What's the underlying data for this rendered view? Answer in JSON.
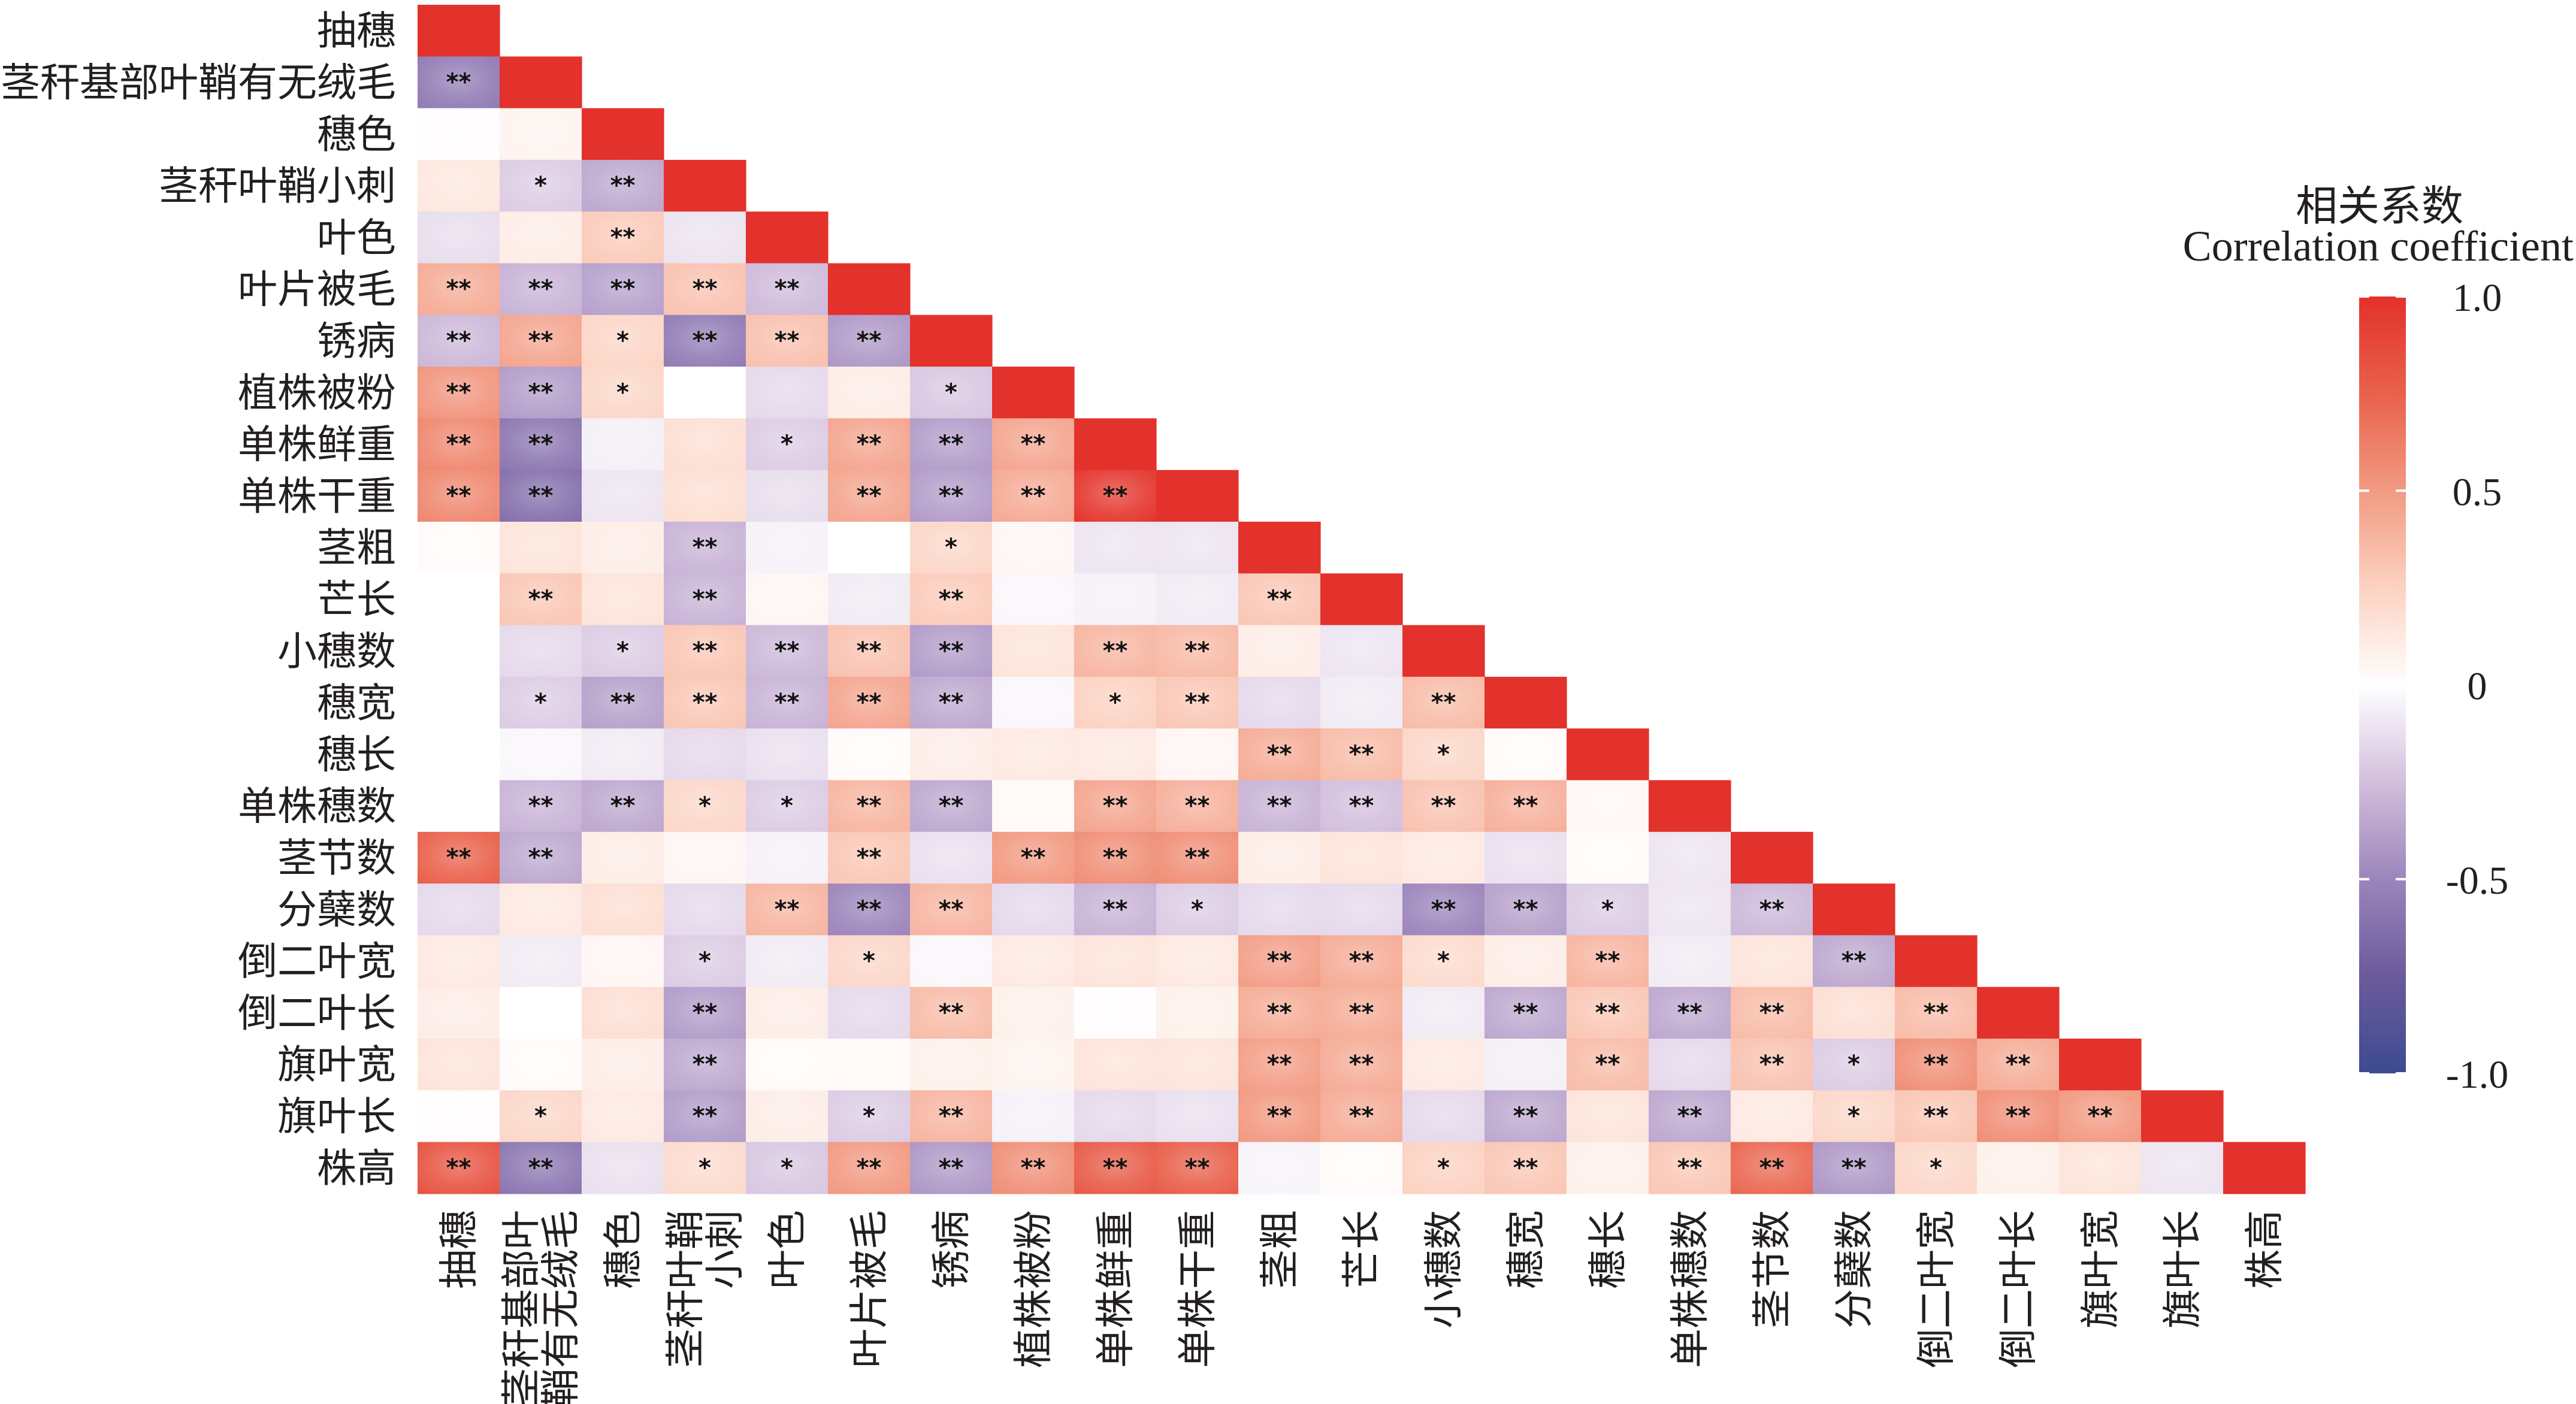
{
  "chart_data": {
    "type": "heatmap",
    "subtype": "correlation-matrix-lower-triangle",
    "title": "",
    "xlabel": "",
    "ylabel": "",
    "value_range": [
      -1.0,
      1.0
    ],
    "variables": [
      "抽穗",
      "茎秆基部叶鞘有无绒毛",
      "穗色",
      "茎秆叶鞘小刺",
      "叶色",
      "叶片被毛",
      "锈病",
      "植株被粉",
      "单株鲜重",
      "单株干重",
      "茎粗",
      "芒长",
      "小穗数",
      "穗宽",
      "穗长",
      "单株穗数",
      "茎节数",
      "分蘖数",
      "倒二叶宽",
      "倒二叶长",
      "旗叶宽",
      "旗叶长",
      "株高"
    ],
    "y_tick_labels": [
      "抽穗",
      "茎秆基部叶鞘有无绒毛",
      "穗色",
      "茎秆叶鞘小刺",
      "叶色",
      "叶片被毛",
      "锈病",
      "植株被粉",
      "单株鲜重",
      "单株干重",
      "茎粗",
      "芒长",
      "小穗数",
      "穗宽",
      "穗长",
      "单株穗数",
      "茎节数",
      "分蘖数",
      "倒二叶宽",
      "倒二叶长",
      "旗叶宽",
      "旗叶长",
      "株高"
    ],
    "x_tick_labels": [
      [
        "抽穗"
      ],
      [
        "茎秆基部叶",
        "鞘有无绒毛"
      ],
      [
        "穗色"
      ],
      [
        "茎秆叶鞘",
        "小刺"
      ],
      [
        "叶色"
      ],
      [
        "叶片被毛"
      ],
      [
        "锈病"
      ],
      [
        "植株被粉"
      ],
      [
        "单株鲜重"
      ],
      [
        "单株干重"
      ],
      [
        "茎粗"
      ],
      [
        "芒长"
      ],
      [
        "小穗数"
      ],
      [
        "穗宽"
      ],
      [
        "穗长"
      ],
      [
        "单株穗数"
      ],
      [
        "茎节数"
      ],
      [
        "分蘖数"
      ],
      [
        "倒二叶宽"
      ],
      [
        "倒二叶长"
      ],
      [
        "旗叶宽"
      ],
      [
        "旗叶长"
      ],
      [
        "株高"
      ]
    ],
    "values": [
      [
        1
      ],
      [
        -0.55,
        1
      ],
      [
        0.01,
        0.06,
        1
      ],
      [
        0.13,
        -0.2,
        -0.35,
        1
      ],
      [
        -0.13,
        0.1,
        0.28,
        -0.11,
        1
      ],
      [
        0.42,
        -0.3,
        -0.38,
        0.32,
        -0.27,
        1
      ],
      [
        -0.28,
        0.45,
        0.23,
        -0.55,
        0.33,
        -0.42,
        1
      ],
      [
        0.52,
        -0.4,
        0.22,
        0.0,
        -0.15,
        0.1,
        -0.22,
        1
      ],
      [
        0.58,
        -0.58,
        -0.06,
        0.18,
        -0.2,
        0.45,
        -0.4,
        0.45,
        1
      ],
      [
        0.58,
        -0.62,
        -0.1,
        0.18,
        -0.13,
        0.45,
        -0.4,
        0.43,
        0.97,
        1
      ],
      [
        0.02,
        0.15,
        0.1,
        -0.3,
        -0.05,
        0.0,
        0.22,
        0.05,
        -0.1,
        -0.1,
        1
      ],
      [
        0.0,
        0.3,
        0.15,
        -0.3,
        0.05,
        -0.08,
        0.28,
        -0.03,
        -0.05,
        -0.08,
        0.3,
        1
      ],
      [
        0.0,
        -0.15,
        -0.2,
        0.3,
        -0.28,
        0.32,
        -0.4,
        0.15,
        0.38,
        0.36,
        0.1,
        -0.1,
        1
      ],
      [
        0.0,
        -0.2,
        -0.38,
        0.3,
        -0.3,
        0.45,
        -0.35,
        -0.03,
        0.25,
        0.3,
        -0.15,
        -0.08,
        0.35,
        1
      ],
      [
        0.0,
        -0.03,
        -0.08,
        -0.15,
        -0.12,
        0.02,
        0.1,
        0.12,
        0.12,
        0.05,
        0.42,
        0.35,
        0.22,
        0.02,
        1
      ],
      [
        0.0,
        -0.3,
        -0.35,
        0.22,
        -0.2,
        0.38,
        -0.35,
        0.03,
        0.45,
        0.4,
        -0.3,
        -0.25,
        0.32,
        0.4,
        0.04,
        1
      ],
      [
        0.75,
        -0.35,
        0.1,
        0.05,
        -0.05,
        0.3,
        -0.12,
        0.5,
        0.55,
        0.55,
        0.1,
        0.15,
        0.12,
        -0.12,
        0.02,
        -0.1,
        1
      ],
      [
        -0.15,
        0.12,
        0.18,
        -0.15,
        0.38,
        -0.5,
        0.38,
        -0.15,
        -0.3,
        -0.2,
        -0.15,
        -0.15,
        -0.5,
        -0.38,
        -0.2,
        -0.1,
        -0.28,
        1
      ],
      [
        0.12,
        -0.08,
        0.05,
        -0.2,
        -0.08,
        0.22,
        -0.03,
        0.12,
        0.15,
        0.12,
        0.48,
        0.42,
        0.2,
        0.1,
        0.38,
        -0.08,
        0.15,
        -0.35,
        1
      ],
      [
        0.1,
        0.0,
        0.18,
        -0.4,
        0.1,
        -0.15,
        0.35,
        0.08,
        0.01,
        0.08,
        0.42,
        0.42,
        -0.08,
        -0.35,
        0.3,
        -0.35,
        0.35,
        0.18,
        0.35,
        1
      ],
      [
        0.15,
        0.02,
        0.1,
        -0.35,
        0.02,
        0.03,
        0.08,
        0.06,
        0.15,
        0.15,
        0.48,
        0.42,
        0.12,
        -0.06,
        0.35,
        -0.15,
        0.32,
        -0.2,
        0.55,
        0.42,
        1
      ],
      [
        0.01,
        0.22,
        0.12,
        -0.4,
        0.1,
        -0.2,
        0.38,
        -0.05,
        -0.15,
        -0.12,
        0.5,
        0.42,
        -0.15,
        -0.35,
        0.15,
        -0.35,
        0.12,
        0.22,
        0.3,
        0.55,
        0.5,
        1
      ],
      [
        0.82,
        -0.58,
        -0.12,
        0.2,
        -0.22,
        0.5,
        -0.42,
        0.55,
        0.78,
        0.76,
        -0.04,
        0.02,
        0.25,
        0.3,
        0.08,
        0.3,
        0.72,
        -0.42,
        0.22,
        0.08,
        0.15,
        -0.1,
        1
      ]
    ],
    "significance": [
      [
        ""
      ],
      [
        "**",
        ""
      ],
      [
        "",
        "",
        ""
      ],
      [
        "",
        "*",
        "**",
        ""
      ],
      [
        "",
        "",
        "**",
        "",
        ""
      ],
      [
        "**",
        "**",
        "**",
        "**",
        "**",
        ""
      ],
      [
        "**",
        "**",
        "*",
        "**",
        "**",
        "**",
        ""
      ],
      [
        "**",
        "**",
        "*",
        "",
        "",
        "",
        "*",
        ""
      ],
      [
        "**",
        "**",
        "",
        "",
        "*",
        "**",
        "**",
        "**",
        ""
      ],
      [
        "**",
        "**",
        "",
        "",
        "",
        "**",
        "**",
        "**",
        "**",
        ""
      ],
      [
        "",
        "",
        "",
        "**",
        "",
        "",
        "*",
        "",
        "",
        "",
        ""
      ],
      [
        "",
        "**",
        "",
        "**",
        "",
        "",
        "**",
        "",
        "",
        "",
        "**",
        ""
      ],
      [
        "",
        "",
        "*",
        "**",
        "**",
        "**",
        "**",
        "",
        "**",
        "**",
        "",
        "",
        ""
      ],
      [
        "",
        "*",
        "**",
        "**",
        "**",
        "**",
        "**",
        "",
        "*",
        "**",
        "",
        "",
        "**",
        ""
      ],
      [
        "",
        "",
        "",
        "",
        "",
        "",
        "",
        "",
        "",
        "",
        "**",
        "**",
        "*",
        "",
        ""
      ],
      [
        "",
        "**",
        "**",
        "*",
        "*",
        "**",
        "**",
        "",
        "**",
        "**",
        "**",
        "**",
        "**",
        "**",
        "",
        ""
      ],
      [
        "**",
        "**",
        "",
        "",
        "",
        "**",
        "",
        "**",
        "**",
        "**",
        "",
        "",
        "",
        "",
        "",
        "",
        ""
      ],
      [
        "",
        "",
        "",
        "",
        "**",
        "**",
        "**",
        "",
        "**",
        "*",
        "",
        "",
        "**",
        "**",
        "*",
        "",
        "**",
        ""
      ],
      [
        "",
        "",
        "",
        "*",
        "",
        "*",
        "",
        "",
        "",
        "",
        "**",
        "**",
        "*",
        "",
        "**",
        "",
        "",
        "**",
        ""
      ],
      [
        "",
        "",
        "",
        "**",
        "",
        "",
        "**",
        "",
        "",
        "",
        "**",
        "**",
        "",
        "**",
        "**",
        "**",
        "**",
        "",
        "**",
        ""
      ],
      [
        "",
        "",
        "",
        "**",
        "",
        "",
        "",
        "",
        "",
        "",
        "**",
        "**",
        "",
        "",
        "**",
        "",
        "**",
        "*",
        "**",
        "**",
        ""
      ],
      [
        "",
        "*",
        "",
        "**",
        "",
        "*",
        "**",
        "",
        "",
        "",
        "**",
        "**",
        "",
        "**",
        "",
        "**",
        "",
        "*",
        "**",
        "**",
        "**",
        ""
      ],
      [
        "**",
        "**",
        "",
        "*",
        "*",
        "**",
        "**",
        "**",
        "**",
        "**",
        "",
        "",
        "*",
        "**",
        "",
        "**",
        "**",
        "**",
        "*",
        "",
        "",
        "",
        ""
      ]
    ],
    "colorbar": {
      "title": "相关系数",
      "subtitle": "Correlation coefficient",
      "placement": "right",
      "ticks": [
        1.0,
        0.5,
        0,
        -0.5,
        -1.0
      ],
      "tick_labels": [
        "1.0",
        "0.5",
        "0",
        "-0.5",
        "-1.0"
      ],
      "stops": [
        {
          "value": -1.0,
          "color": "#3d4b91"
        },
        {
          "value": -0.75,
          "color": "#6b5a9c"
        },
        {
          "value": -0.5,
          "color": "#9c85bb"
        },
        {
          "value": -0.25,
          "color": "#d3bfdd"
        },
        {
          "value": 0.0,
          "color": "#ffffff"
        },
        {
          "value": 0.25,
          "color": "#fcd2c2"
        },
        {
          "value": 0.5,
          "color": "#f29a82"
        },
        {
          "value": 0.75,
          "color": "#e9614b"
        },
        {
          "value": 1.0,
          "color": "#e3312b"
        }
      ]
    }
  }
}
